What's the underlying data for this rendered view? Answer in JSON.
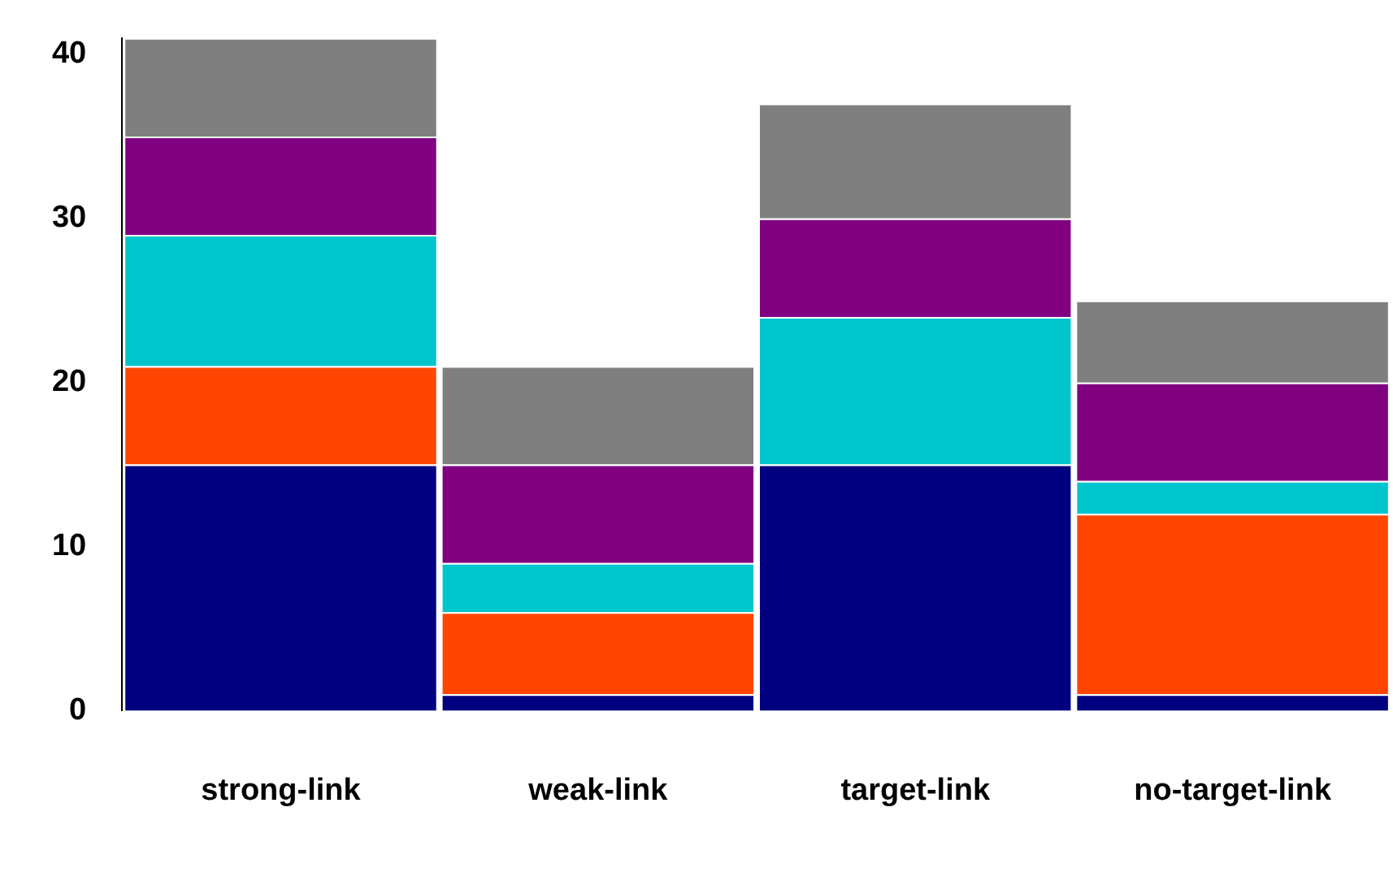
{
  "chart_data": {
    "type": "bar",
    "stacked": true,
    "categories": [
      "strong-link",
      "weak-link",
      "target-link",
      "no-target-link"
    ],
    "series": [
      {
        "color": "#000080",
        "values": [
          15,
          1,
          15,
          1
        ]
      },
      {
        "color": "#ff4500",
        "values": [
          6,
          5,
          0,
          11
        ]
      },
      {
        "color": "#00c5cd",
        "values": [
          8,
          3,
          9,
          2
        ]
      },
      {
        "color": "#800080",
        "values": [
          6,
          6,
          6,
          6
        ]
      },
      {
        "color": "#7f7f7f",
        "values": [
          6,
          6,
          7,
          5
        ]
      }
    ],
    "ylim": [
      0,
      41
    ],
    "yticks": [
      0,
      10,
      20,
      30,
      40
    ],
    "grid": false,
    "legend": false
  }
}
